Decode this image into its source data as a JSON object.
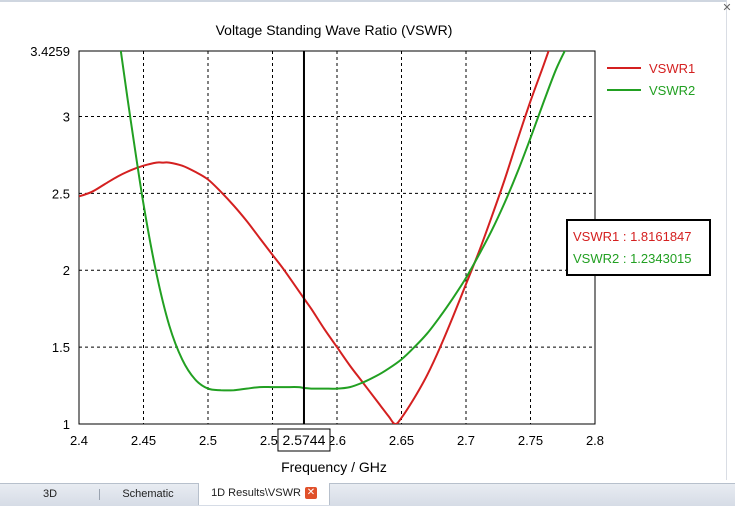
{
  "window": {
    "close_glyph": "✕"
  },
  "tabs": [
    {
      "label": "3D"
    },
    {
      "label": "Schematic"
    },
    {
      "label": "1D Results\\VSWR",
      "active": true
    }
  ],
  "chart_data": {
    "type": "line",
    "title": "Voltage Standing Wave Ratio (VSWR)",
    "xlabel": "Frequency / GHz",
    "ylabel": "",
    "xlim": [
      2.4,
      2.8
    ],
    "ylim": [
      1,
      3.4259
    ],
    "x_ticks": [
      "2.4",
      "2.45",
      "2.5",
      "2.55",
      "2.6",
      "2.65",
      "2.7",
      "2.75",
      "2.8"
    ],
    "y_ticks": [
      "1",
      "1.5",
      "2",
      "2.5",
      "3",
      "3.4259"
    ],
    "grid": true,
    "legend_position": "top-right",
    "marker": {
      "x": 2.5744,
      "label": "2.5744",
      "readouts": [
        {
          "text": "VSWR1 : 1.8161847",
          "color": "#d42020"
        },
        {
          "text": "VSWR2 : 1.2343015",
          "color": "#22a022"
        }
      ]
    },
    "series": [
      {
        "name": "VSWR1",
        "color": "#d42020",
        "x": [
          2.4,
          2.41,
          2.42,
          2.43,
          2.44,
          2.45,
          2.46,
          2.465,
          2.47,
          2.48,
          2.49,
          2.5,
          2.51,
          2.52,
          2.53,
          2.54,
          2.55,
          2.56,
          2.5744,
          2.58,
          2.59,
          2.6,
          2.61,
          2.62,
          2.63,
          2.64,
          2.645,
          2.65,
          2.66,
          2.67,
          2.68,
          2.69,
          2.7,
          2.71,
          2.72,
          2.73,
          2.74,
          2.75,
          2.76,
          2.765
        ],
        "y": [
          2.48,
          2.51,
          2.56,
          2.61,
          2.65,
          2.68,
          2.7,
          2.7,
          2.7,
          2.68,
          2.64,
          2.59,
          2.51,
          2.42,
          2.32,
          2.21,
          2.1,
          1.99,
          1.8161847,
          1.75,
          1.62,
          1.5,
          1.38,
          1.27,
          1.16,
          1.05,
          1.0,
          1.04,
          1.17,
          1.32,
          1.5,
          1.7,
          1.91,
          2.12,
          2.35,
          2.59,
          2.85,
          3.1,
          3.33,
          3.45
        ]
      },
      {
        "name": "VSWR2",
        "color": "#22a022",
        "x": [
          2.432,
          2.44,
          2.45,
          2.46,
          2.47,
          2.48,
          2.49,
          2.5,
          2.51,
          2.52,
          2.53,
          2.54,
          2.55,
          2.56,
          2.57,
          2.5744,
          2.58,
          2.59,
          2.6,
          2.61,
          2.62,
          2.63,
          2.64,
          2.65,
          2.66,
          2.67,
          2.68,
          2.69,
          2.7,
          2.71,
          2.72,
          2.73,
          2.74,
          2.75,
          2.76,
          2.77,
          2.778
        ],
        "y": [
          3.45,
          2.98,
          2.43,
          1.98,
          1.64,
          1.42,
          1.29,
          1.23,
          1.22,
          1.22,
          1.23,
          1.24,
          1.24,
          1.24,
          1.24,
          1.2343015,
          1.23,
          1.23,
          1.23,
          1.24,
          1.27,
          1.31,
          1.36,
          1.42,
          1.5,
          1.59,
          1.7,
          1.82,
          1.95,
          2.1,
          2.26,
          2.44,
          2.64,
          2.86,
          3.09,
          3.31,
          3.45
        ]
      }
    ]
  }
}
